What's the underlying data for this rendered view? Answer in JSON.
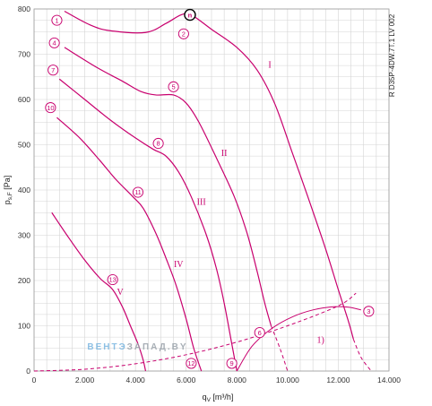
{
  "chart_data": {
    "type": "line",
    "side_title": "R D35P-4DW.7T.1 LV 002",
    "xlabel": "q",
    "xlabel_sub": "V",
    "xlabel_unit": " [m³/h]",
    "ylabel": "p",
    "ylabel_sub": "s,F",
    "ylabel_unit": " [Pa]",
    "xlim": [
      0,
      14000
    ],
    "ylim": [
      0,
      800
    ],
    "x_ticks": [
      0,
      2000,
      4000,
      6000,
      8000,
      10000,
      12000,
      14000
    ],
    "x_tick_labels": [
      "0",
      "2.000",
      "4.000",
      "6.000",
      "8.000",
      "10.000",
      "12.000",
      "14.000"
    ],
    "y_ticks": [
      0,
      100,
      200,
      300,
      400,
      500,
      600,
      700,
      800
    ],
    "y_tick_labels": [
      "0",
      "100",
      "200",
      "300",
      "400",
      "500",
      "600",
      "700",
      "800"
    ],
    "grid": true,
    "accent_color": "#c8006e",
    "grid_color": "#d4d4d4",
    "series": [
      {
        "name": "I",
        "label_at": [
          9300,
          670
        ],
        "points": [
          [
            1200,
            795
          ],
          [
            2200,
            765
          ],
          [
            3000,
            752
          ],
          [
            4400,
            748
          ],
          [
            5200,
            768
          ],
          [
            5800,
            787
          ],
          [
            6200,
            787
          ],
          [
            7000,
            755
          ],
          [
            8000,
            715
          ],
          [
            8800,
            665
          ],
          [
            9500,
            590
          ],
          [
            10200,
            480
          ],
          [
            10800,
            385
          ],
          [
            11500,
            270
          ],
          [
            12000,
            180
          ],
          [
            12400,
            110
          ],
          [
            12600,
            70
          ]
        ],
        "dashed_extension": [
          [
            12600,
            70
          ],
          [
            12900,
            30
          ],
          [
            13300,
            0
          ]
        ]
      },
      {
        "name": "II",
        "label_at": [
          7500,
          475
        ],
        "points": [
          [
            1200,
            715
          ],
          [
            2500,
            670
          ],
          [
            3500,
            640
          ],
          [
            4200,
            618
          ],
          [
            4800,
            610
          ],
          [
            5500,
            610
          ],
          [
            6000,
            592
          ],
          [
            6500,
            550
          ],
          [
            7200,
            470
          ],
          [
            7900,
            385
          ],
          [
            8400,
            305
          ],
          [
            8800,
            220
          ],
          [
            9100,
            150
          ],
          [
            9350,
            100
          ]
        ],
        "dashed_extension": [
          [
            9350,
            100
          ],
          [
            9700,
            50
          ],
          [
            10000,
            0
          ]
        ]
      },
      {
        "name": "III",
        "label_at": [
          6600,
          367
        ],
        "points": [
          [
            1000,
            645
          ],
          [
            2000,
            600
          ],
          [
            3000,
            555
          ],
          [
            4000,
            515
          ],
          [
            4700,
            490
          ],
          [
            5200,
            475
          ],
          [
            5700,
            440
          ],
          [
            6200,
            385
          ],
          [
            6800,
            300
          ],
          [
            7200,
            225
          ],
          [
            7500,
            150
          ],
          [
            7800,
            60
          ],
          [
            8000,
            0
          ]
        ]
      },
      {
        "name": "IV",
        "label_at": [
          5700,
          230
        ],
        "points": [
          [
            900,
            560
          ],
          [
            1800,
            515
          ],
          [
            2600,
            465
          ],
          [
            3200,
            425
          ],
          [
            3900,
            385
          ],
          [
            4300,
            360
          ],
          [
            4800,
            305
          ],
          [
            5200,
            250
          ],
          [
            5600,
            190
          ],
          [
            6000,
            115
          ],
          [
            6300,
            50
          ],
          [
            6600,
            0
          ]
        ]
      },
      {
        "name": "V",
        "label_at": [
          3400,
          168
        ],
        "points": [
          [
            700,
            350
          ],
          [
            1300,
            300
          ],
          [
            2000,
            245
          ],
          [
            2600,
            205
          ],
          [
            3100,
            180
          ],
          [
            3500,
            140
          ],
          [
            3800,
            100
          ],
          [
            4100,
            60
          ],
          [
            4300,
            25
          ],
          [
            4400,
            0
          ]
        ]
      }
    ],
    "system_curve": {
      "name": "1)",
      "label_at": [
        11300,
        62
      ],
      "points": [
        [
          0,
          0
        ],
        [
          2000,
          4
        ],
        [
          4000,
          16
        ],
        [
          6000,
          36
        ],
        [
          8000,
          64
        ],
        [
          10000,
          100
        ],
        [
          12000,
          144
        ],
        [
          12700,
          172
        ]
      ]
    },
    "efficiency_curve": {
      "points": [
        [
          8000,
          0
        ],
        [
          8600,
          55
        ],
        [
          9400,
          95
        ],
        [
          10200,
          120
        ],
        [
          11000,
          135
        ],
        [
          11800,
          142
        ],
        [
          12400,
          141
        ],
        [
          12900,
          135
        ]
      ]
    },
    "markers": [
      {
        "id": "1",
        "label": "1",
        "at": [
          900,
          775
        ]
      },
      {
        "id": "2",
        "label": "2",
        "at": [
          5900,
          745
        ]
      },
      {
        "id": "n",
        "label": "n",
        "at": [
          6150,
          787
        ],
        "style": "bold"
      },
      {
        "id": "3",
        "label": "3",
        "at": [
          13200,
          132
        ]
      },
      {
        "id": "4",
        "label": "4",
        "at": [
          800,
          725
        ]
      },
      {
        "id": "5",
        "label": "5",
        "at": [
          5500,
          628
        ]
      },
      {
        "id": "6",
        "label": "6",
        "at": [
          8900,
          85
        ]
      },
      {
        "id": "7",
        "label": "7",
        "at": [
          750,
          665
        ]
      },
      {
        "id": "8",
        "label": "8",
        "at": [
          4900,
          503
        ]
      },
      {
        "id": "9",
        "label": "9",
        "at": [
          7800,
          17
        ]
      },
      {
        "id": "10",
        "label": "10",
        "at": [
          650,
          582
        ]
      },
      {
        "id": "11",
        "label": "11",
        "at": [
          4100,
          395
        ]
      },
      {
        "id": "12",
        "label": "12",
        "at": [
          6200,
          17
        ]
      },
      {
        "id": "13",
        "label": "13",
        "at": [
          3100,
          202
        ]
      }
    ],
    "watermark": {
      "text_a": "ВЕНТЭ",
      "text_b": "ЗАПАД",
      "text_c": ".BY",
      "color_a": "#7ab6e0",
      "color_b": "#9aa2aa",
      "at": [
        2100,
        48
      ]
    }
  }
}
